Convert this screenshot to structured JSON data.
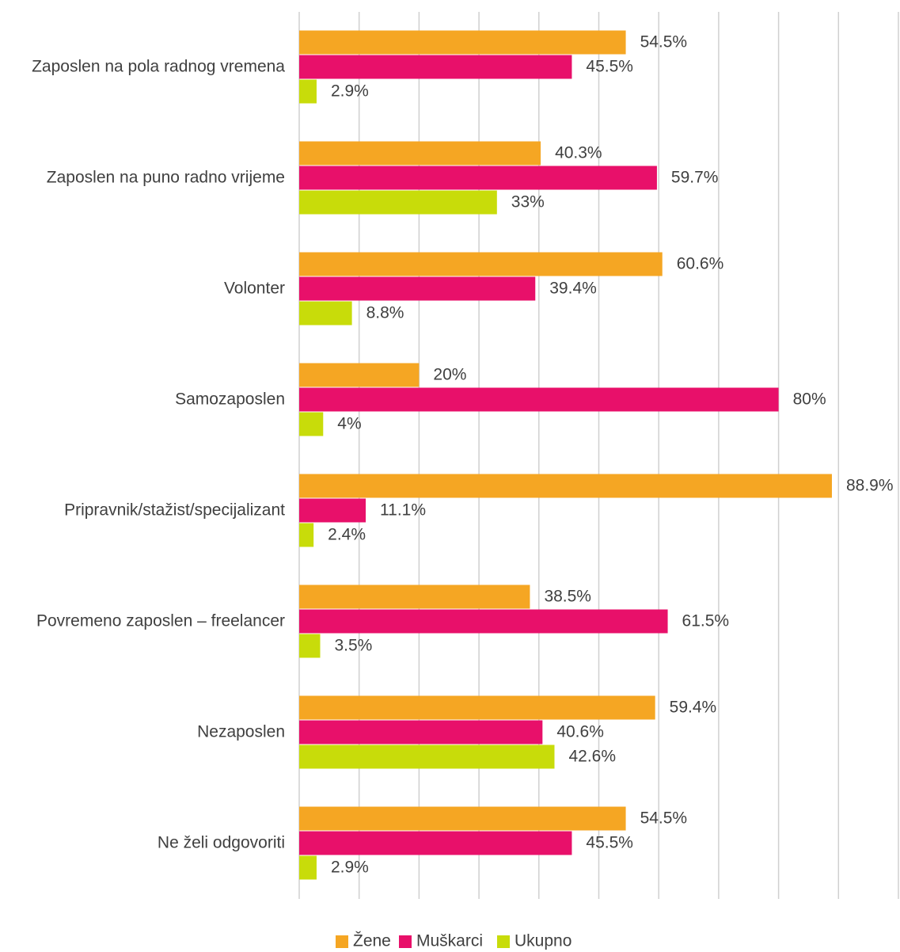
{
  "chart_data": {
    "type": "hbar",
    "categories": [
      "Zaposlen na pola radnog vremena",
      "Zaposlen na puno radno vrijeme",
      "Volonter",
      "Samozaposlen",
      "Pripravnik/stažist/specijalizant",
      "Povremeno zaposlen – freelancer",
      "Nezaposlen",
      "Ne želi odgovoriti"
    ],
    "series": [
      {
        "name": "Žene",
        "color": "#f5a623",
        "values": [
          54.5,
          40.3,
          60.6,
          20,
          88.9,
          38.5,
          59.4,
          54.5
        ],
        "value_labels": [
          "54.5%",
          "40.3%",
          "60.6%",
          "20%",
          "88.9%",
          "38.5%",
          "59.4%",
          "54.5%"
        ]
      },
      {
        "name": "Muškarci",
        "color": "#e8106a",
        "values": [
          45.5,
          59.7,
          39.4,
          80,
          11.1,
          61.5,
          40.6,
          45.5
        ],
        "value_labels": [
          "45.5%",
          "59.7%",
          "39.4%",
          "80%",
          "11.1%",
          "61.5%",
          "40.6%",
          "45.5%"
        ]
      },
      {
        "name": "Ukupno",
        "color": "#c8dc0a",
        "values": [
          2.9,
          33,
          8.8,
          4,
          2.4,
          3.5,
          42.6,
          2.9
        ],
        "value_labels": [
          "2.9%",
          "33%",
          "8.8%",
          "4%",
          "2.4%",
          "3.5%",
          "42.6%",
          "2.9%"
        ]
      }
    ],
    "xlim": [
      0,
      100
    ],
    "xticks": [
      0,
      10,
      20,
      30,
      40,
      50,
      60,
      70,
      80,
      90,
      100
    ],
    "grid": true,
    "legend": "bottom"
  }
}
